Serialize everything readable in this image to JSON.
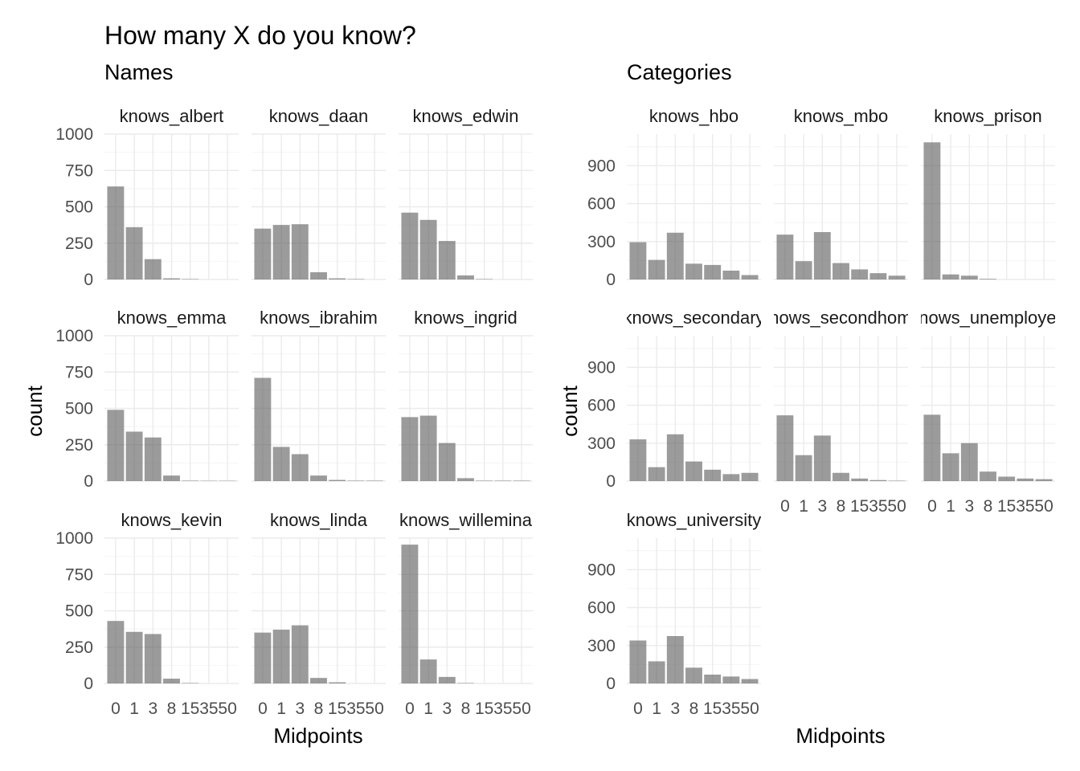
{
  "title": "How many X do you know?",
  "chart_data": [
    {
      "type": "bar",
      "subtitle": "Names",
      "xlabel": "Midpoints",
      "ylabel": "count",
      "ylim": [
        0,
        1000
      ],
      "yticks": [
        0,
        250,
        500,
        750,
        1000
      ],
      "categories": [
        "0",
        "1",
        "3",
        "8",
        "15",
        "35",
        "50"
      ],
      "panels": [
        {
          "name": "knows_albert",
          "values": [
            640,
            360,
            140,
            8,
            3,
            0,
            0
          ]
        },
        {
          "name": "knows_daan",
          "values": [
            350,
            375,
            380,
            50,
            8,
            3,
            0
          ]
        },
        {
          "name": "knows_edwin",
          "values": [
            460,
            410,
            265,
            28,
            3,
            0,
            0
          ]
        },
        {
          "name": "knows_emma",
          "values": [
            490,
            340,
            300,
            38,
            3,
            2,
            2
          ]
        },
        {
          "name": "knows_ibrahim",
          "values": [
            710,
            235,
            185,
            38,
            8,
            3,
            3
          ]
        },
        {
          "name": "knows_ingrid",
          "values": [
            440,
            450,
            262,
            20,
            3,
            3,
            3
          ]
        },
        {
          "name": "knows_kevin",
          "values": [
            430,
            355,
            340,
            33,
            3,
            0,
            0
          ]
        },
        {
          "name": "knows_linda",
          "values": [
            350,
            370,
            400,
            38,
            8,
            0,
            0
          ]
        },
        {
          "name": "knows_willemina",
          "values": [
            955,
            165,
            45,
            3,
            0,
            0,
            0
          ]
        }
      ]
    },
    {
      "type": "bar",
      "subtitle": "Categories",
      "xlabel": "Midpoints",
      "ylabel": "count",
      "ylim": [
        0,
        1150
      ],
      "yticks": [
        0,
        300,
        600,
        900
      ],
      "categories": [
        "0",
        "1",
        "3",
        "8",
        "15",
        "35",
        "50"
      ],
      "panels": [
        {
          "name": "knows_hbo",
          "values": [
            295,
            155,
            370,
            125,
            115,
            70,
            35
          ]
        },
        {
          "name": "knows_mbo",
          "values": [
            355,
            145,
            375,
            130,
            80,
            50,
            30
          ]
        },
        {
          "name": "knows_prison",
          "values": [
            1085,
            40,
            30,
            5,
            0,
            0,
            0
          ]
        },
        {
          "name": "knows_secondary",
          "values": [
            330,
            110,
            370,
            155,
            90,
            55,
            65
          ]
        },
        {
          "name": "knows_secondhome",
          "values": [
            520,
            205,
            360,
            65,
            20,
            8,
            3
          ]
        },
        {
          "name": "knows_unemployed",
          "values": [
            525,
            220,
            300,
            75,
            35,
            20,
            15
          ]
        },
        {
          "name": "knows_university",
          "values": [
            340,
            175,
            375,
            125,
            70,
            55,
            35
          ]
        }
      ]
    }
  ]
}
